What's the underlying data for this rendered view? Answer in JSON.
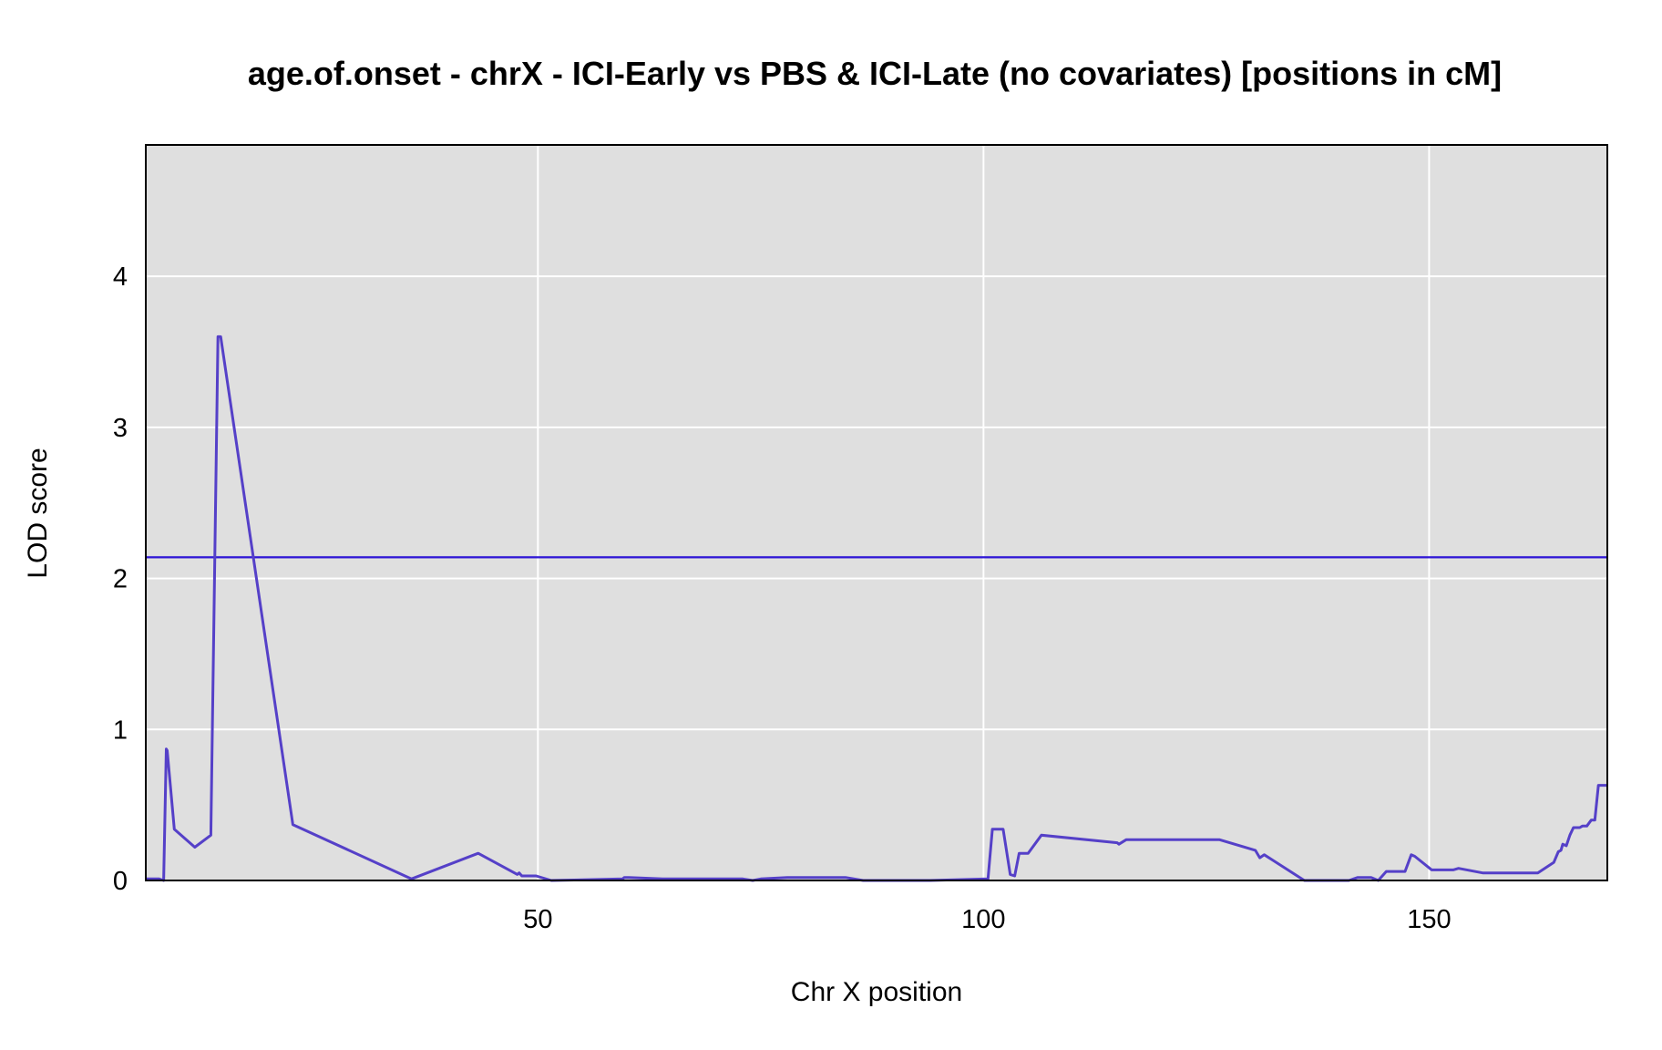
{
  "chart_data": {
    "type": "line",
    "title": "age.of.onset - chrX - ICI-Early vs PBS & ICI-Late (no covariates) [positions in cM]",
    "xlabel": "Chr X position",
    "ylabel": "LOD score",
    "xlim": [
      6,
      170
    ],
    "ylim": [
      0,
      4.87
    ],
    "xticks": [
      50,
      100,
      150
    ],
    "yticks": [
      0,
      1,
      2,
      3,
      4
    ],
    "grid": true,
    "threshold": {
      "value": 2.14,
      "color": "#2b13d6"
    },
    "series": [
      {
        "color": "#5540c8",
        "x": [
          6.0,
          7.5,
          8.0,
          8.3,
          8.4,
          9.2,
          11.5,
          13.3,
          14.1,
          14.2,
          14.4,
          22.5,
          35.8,
          43.3,
          47.7,
          47.9,
          48.2,
          49.8,
          51.5,
          59.5,
          59.7,
          60.2,
          64.0,
          73.0,
          74.1,
          75.0,
          78.0,
          84.5,
          86.5,
          94.0,
          100.5,
          101.0,
          102.0,
          102.2,
          103.0,
          103.5,
          104.0,
          105.0,
          106.5,
          115.0,
          115.2,
          116.0,
          126.5,
          130.5,
          131.0,
          131.5,
          136.0,
          141.0,
          142.0,
          143.0,
          143.5,
          144.3,
          145.2,
          147.3,
          148.0,
          148.4,
          150.3,
          151.0,
          152.7,
          153.3,
          156.0,
          162.2,
          164.0,
          164.5,
          164.8,
          165.0,
          165.4,
          165.8,
          166.2,
          166.9,
          167.2,
          167.7,
          168.2,
          168.6,
          169.0,
          170.0
        ],
        "y": [
          0.01,
          0.01,
          0.0,
          0.87,
          0.86,
          0.34,
          0.22,
          0.3,
          3.6,
          3.6,
          3.6,
          0.37,
          0.01,
          0.18,
          0.04,
          0.05,
          0.03,
          0.03,
          0.0,
          0.01,
          0.02,
          0.02,
          0.01,
          0.01,
          0.0,
          0.01,
          0.02,
          0.02,
          0.0,
          0.0,
          0.01,
          0.34,
          0.34,
          0.34,
          0.04,
          0.03,
          0.18,
          0.18,
          0.3,
          0.25,
          0.24,
          0.27,
          0.27,
          0.2,
          0.15,
          0.17,
          0.0,
          0.0,
          0.02,
          0.02,
          0.02,
          0.0,
          0.06,
          0.06,
          0.17,
          0.16,
          0.07,
          0.07,
          0.07,
          0.08,
          0.05,
          0.05,
          0.12,
          0.19,
          0.2,
          0.24,
          0.23,
          0.3,
          0.35,
          0.35,
          0.36,
          0.36,
          0.4,
          0.4,
          0.63,
          0.63
        ]
      }
    ]
  }
}
